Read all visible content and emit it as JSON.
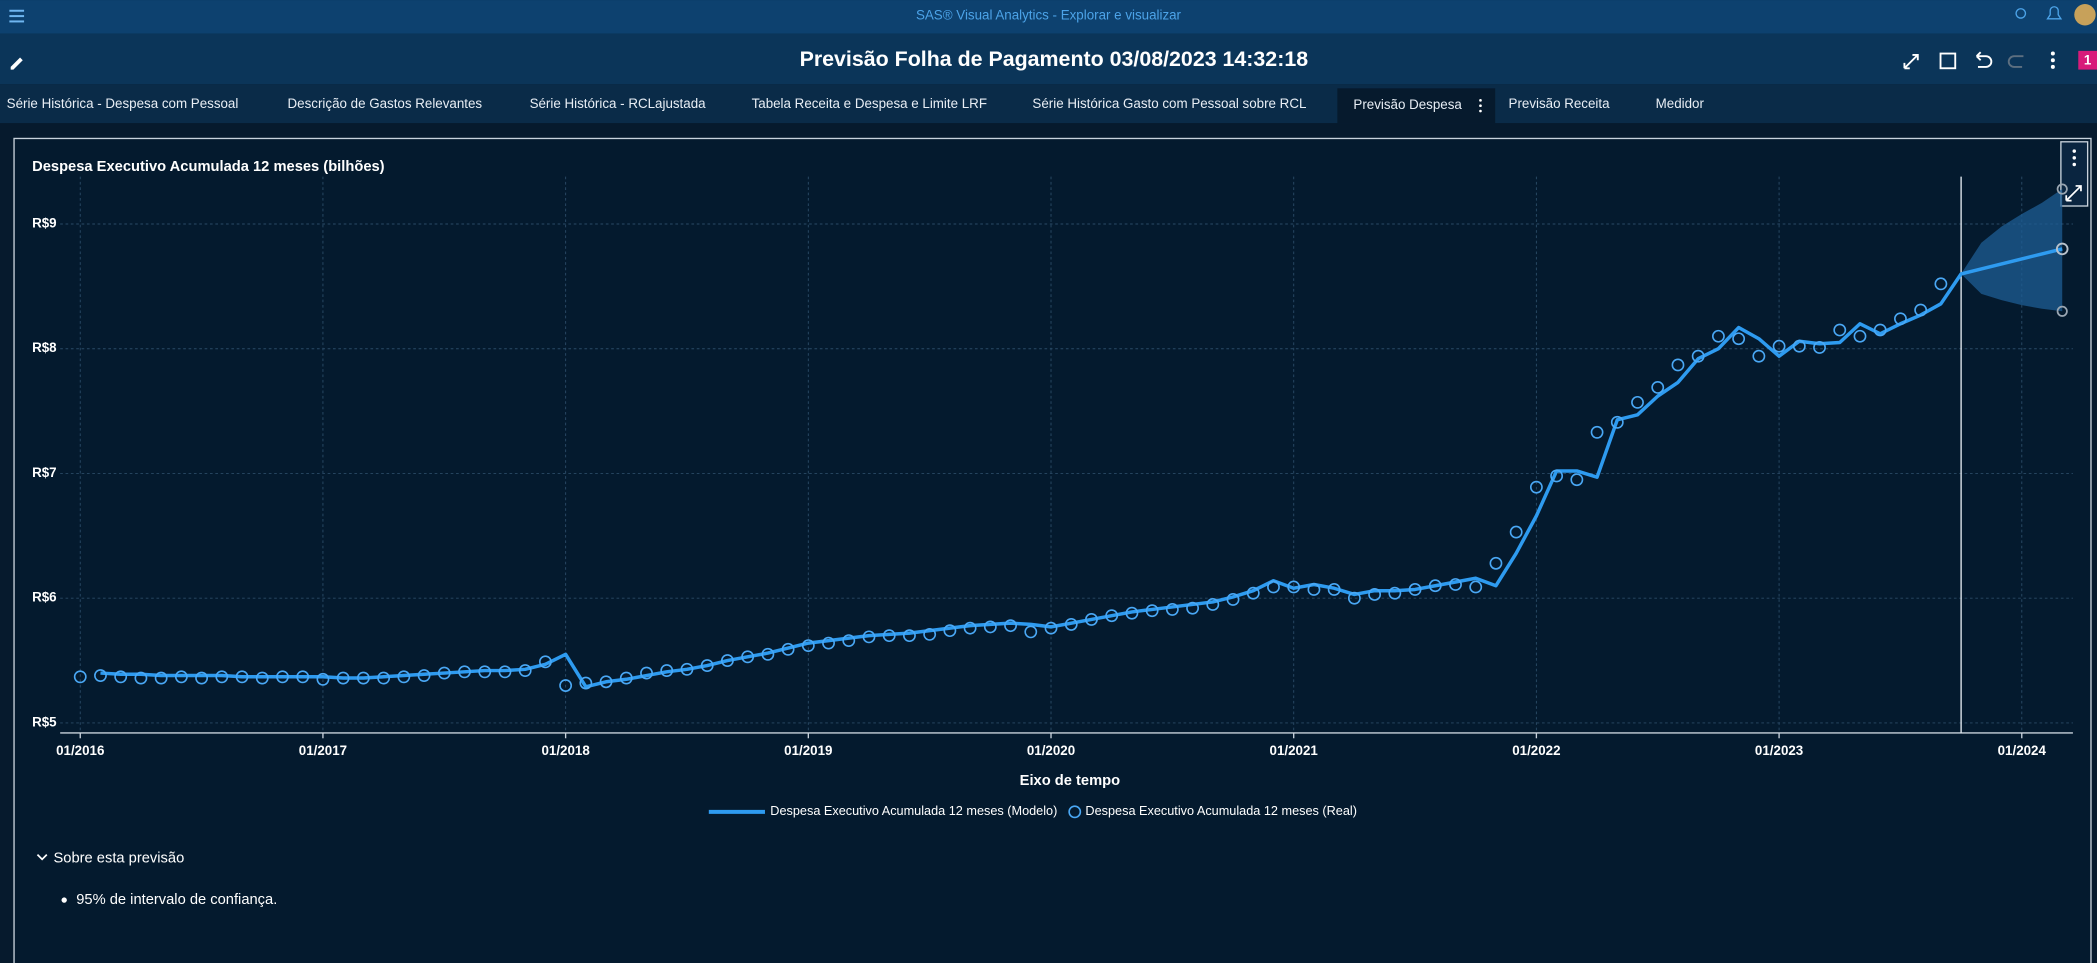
{
  "app": {
    "title_bar": "SAS® Visual Analytics - Explorar e visualizar",
    "report_title": "Previsão Folha de Pagamento 03/08/2023 14:32:18",
    "badge": "1",
    "tabs": [
      "Série Histórica - Despesa com Pessoal",
      "Descrição de Gastos Relevantes",
      "Série Histórica - RCLajustada",
      "Tabela Receita e Despesa e Limite LRF",
      "Série Histórica Gasto com Pessoal sobre RCL",
      "Previsão Despesa",
      "Previsão Receita",
      "Medidor"
    ]
  },
  "chart_data": {
    "type": "line",
    "title": "Despesa Executivo Acumulada 12 meses (bilhões)",
    "x_label": "Eixo de tempo",
    "x": [
      "01/2016",
      "02/2016",
      "03/2016",
      "04/2016",
      "05/2016",
      "06/2016",
      "07/2016",
      "08/2016",
      "09/2016",
      "10/2016",
      "11/2016",
      "12/2016",
      "01/2017",
      "02/2017",
      "03/2017",
      "04/2017",
      "05/2017",
      "06/2017",
      "07/2017",
      "08/2017",
      "09/2017",
      "10/2017",
      "11/2017",
      "12/2017",
      "01/2018",
      "02/2018",
      "03/2018",
      "04/2018",
      "05/2018",
      "06/2018",
      "07/2018",
      "08/2018",
      "09/2018",
      "10/2018",
      "11/2018",
      "12/2018",
      "01/2019",
      "02/2019",
      "03/2019",
      "04/2019",
      "05/2019",
      "06/2019",
      "07/2019",
      "08/2019",
      "09/2019",
      "10/2019",
      "11/2019",
      "12/2019",
      "01/2020",
      "02/2020",
      "03/2020",
      "04/2020",
      "05/2020",
      "06/2020",
      "07/2020",
      "08/2020",
      "09/2020",
      "10/2020",
      "11/2020",
      "12/2020",
      "01/2021",
      "02/2021",
      "03/2021",
      "04/2021",
      "05/2021",
      "06/2021",
      "07/2021",
      "08/2021",
      "09/2021",
      "10/2021",
      "11/2021",
      "12/2021",
      "01/2022",
      "02/2022",
      "03/2022",
      "04/2022",
      "05/2022",
      "06/2022",
      "07/2022",
      "08/2022",
      "09/2022",
      "10/2022",
      "11/2022",
      "12/2022",
      "01/2023",
      "02/2023",
      "03/2023",
      "04/2023",
      "05/2023",
      "06/2023",
      "07/2023",
      "08/2023",
      "09/2023",
      "10/2023",
      "11/2023",
      "12/2023",
      "01/2024",
      "02/2024",
      "03/2024"
    ],
    "series": [
      {
        "name": "Despesa Executivo Acumulada 12 meses (Modelo)",
        "color": "#2e9bf0",
        "style": "line",
        "values": [
          null,
          5.4,
          5.39,
          5.39,
          5.38,
          5.38,
          5.38,
          5.38,
          5.37,
          5.37,
          5.37,
          5.37,
          5.37,
          5.36,
          5.36,
          5.37,
          5.38,
          5.39,
          5.4,
          5.41,
          5.42,
          5.42,
          5.43,
          5.47,
          5.55,
          5.29,
          5.33,
          5.35,
          5.38,
          5.41,
          5.43,
          5.46,
          5.5,
          5.53,
          5.56,
          5.6,
          5.64,
          5.66,
          5.68,
          5.7,
          5.71,
          5.72,
          5.74,
          5.76,
          5.78,
          5.79,
          5.8,
          5.79,
          5.77,
          5.8,
          5.83,
          5.86,
          5.89,
          5.91,
          5.93,
          5.95,
          5.97,
          6.01,
          6.06,
          6.14,
          6.08,
          6.11,
          6.08,
          6.03,
          6.06,
          6.06,
          6.07,
          6.1,
          6.13,
          6.16,
          6.1,
          6.36,
          6.66,
          7.02,
          7.02,
          6.97,
          7.43,
          7.47,
          7.62,
          7.73,
          7.92,
          8.0,
          8.17,
          8.08,
          7.94,
          8.06,
          8.04,
          8.05,
          8.2,
          8.12,
          8.2,
          8.27,
          8.36,
          8.6,
          8.64,
          8.68,
          8.72,
          8.76,
          8.8
        ]
      },
      {
        "name": "Despesa Executivo Acumulada 12 meses (Real)",
        "color": "#4aa8f5",
        "style": "markers",
        "values": [
          5.37,
          5.38,
          5.37,
          5.36,
          5.36,
          5.37,
          5.36,
          5.37,
          5.37,
          5.36,
          5.37,
          5.37,
          5.35,
          5.36,
          5.36,
          5.36,
          5.37,
          5.38,
          5.4,
          5.41,
          5.41,
          5.41,
          5.42,
          5.49,
          5.3,
          5.32,
          5.33,
          5.36,
          5.4,
          5.42,
          5.43,
          5.46,
          5.5,
          5.53,
          5.55,
          5.59,
          5.62,
          5.64,
          5.66,
          5.69,
          5.7,
          5.7,
          5.71,
          5.74,
          5.76,
          5.77,
          5.78,
          5.73,
          5.76,
          5.79,
          5.83,
          5.86,
          5.88,
          5.9,
          5.91,
          5.92,
          5.95,
          5.99,
          6.04,
          6.09,
          6.09,
          6.07,
          6.07,
          6.0,
          6.03,
          6.04,
          6.07,
          6.1,
          6.11,
          6.09,
          6.28,
          6.53,
          6.89,
          6.98,
          6.95,
          7.33,
          7.41,
          7.57,
          7.69,
          7.87,
          7.94,
          8.1,
          8.08,
          7.94,
          8.02,
          8.02,
          8.01,
          8.15,
          8.1,
          8.15,
          8.24,
          8.31,
          8.52,
          null,
          null,
          null,
          null,
          null,
          null
        ]
      }
    ],
    "forecast_band": {
      "color": "#1d5e94",
      "x": [
        "10/2023",
        "11/2023",
        "12/2023",
        "01/2024",
        "02/2024",
        "03/2024"
      ],
      "upper": [
        8.6,
        8.85,
        8.98,
        9.08,
        9.17,
        9.28
      ],
      "lower": [
        8.6,
        8.44,
        8.39,
        8.35,
        8.32,
        8.3
      ]
    },
    "ylim": [
      4.92,
      9.38
    ],
    "yticks": [
      {
        "value": 5,
        "label": "R$5"
      },
      {
        "value": 6,
        "label": "R$6"
      },
      {
        "value": 7,
        "label": "R$7"
      },
      {
        "value": 8,
        "label": "R$8"
      },
      {
        "value": 9,
        "label": "R$9"
      }
    ],
    "xticks": [
      "01/2016",
      "01/2017",
      "01/2018",
      "01/2019",
      "01/2020",
      "01/2021",
      "01/2022",
      "01/2023",
      "01/2024"
    ],
    "grid": true
  },
  "notes": {
    "heading": "Sobre esta previsão",
    "items": [
      "95% de intervalo de confiança."
    ]
  }
}
